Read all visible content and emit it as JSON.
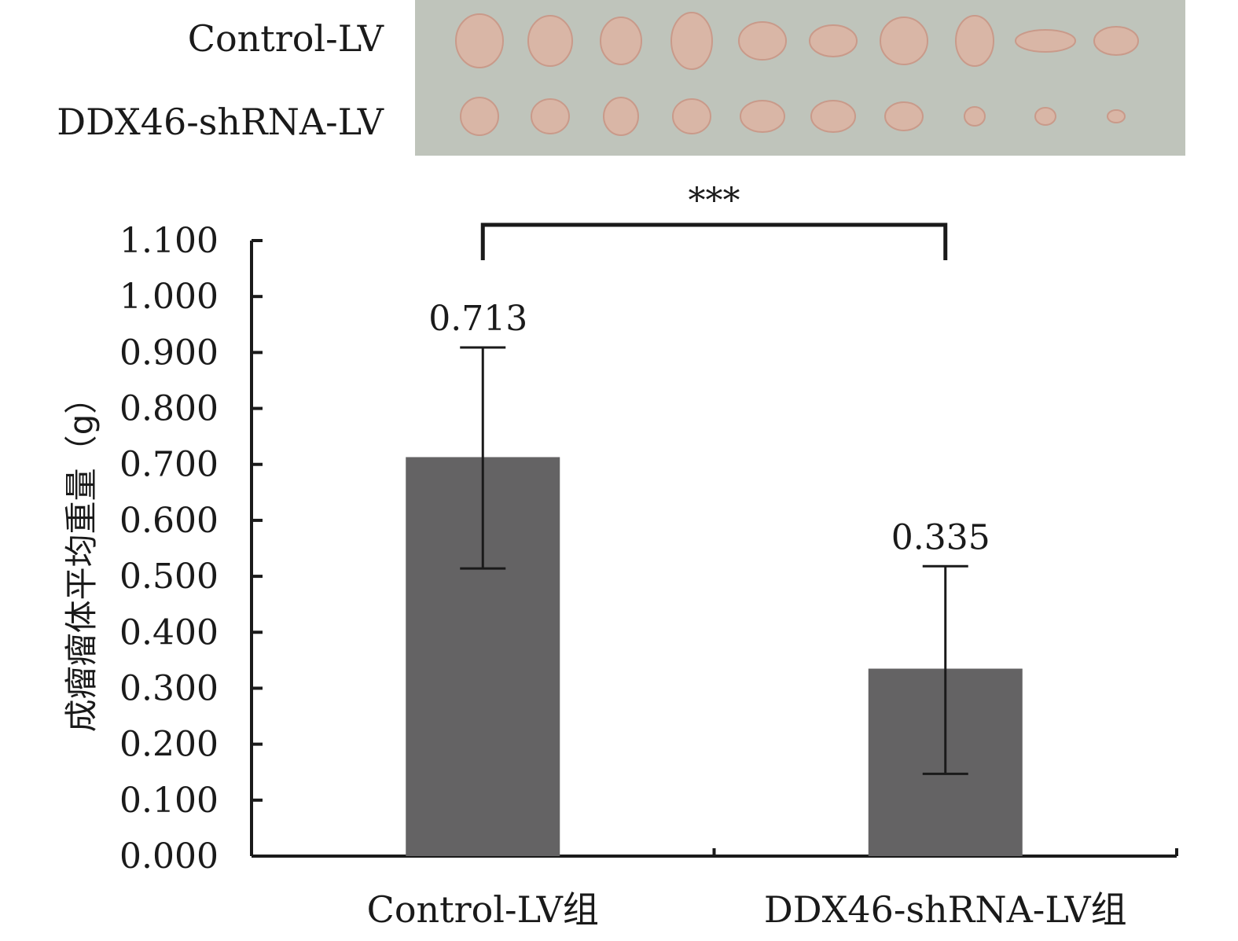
{
  "photo": {
    "rows": [
      {
        "label": "Control-LV",
        "tumor_count": 10
      },
      {
        "label": "DDX46-shRNA-LV",
        "tumor_count": 10
      }
    ],
    "background_color": "#bfc4bb",
    "tumor_color": "#d9b6a6"
  },
  "chart_data": {
    "type": "bar",
    "categories": [
      "Control-LV组",
      "DDX46-shRNA-LV组"
    ],
    "values": [
      0.713,
      0.335
    ],
    "data_labels": [
      "0.713",
      "0.335"
    ],
    "error_high": [
      0.909,
      0.518
    ],
    "error_low": [
      0.514,
      0.147
    ],
    "ylabel": "成瘤瘤体平均重量（g）",
    "ylim": [
      0,
      1.1
    ],
    "yticks": [
      0.0,
      0.1,
      0.2,
      0.3,
      0.4,
      0.5,
      0.6,
      0.7,
      0.8,
      0.9,
      1.0,
      1.1
    ],
    "ytick_labels": [
      "0.000",
      "0.100",
      "0.200",
      "0.300",
      "0.400",
      "0.500",
      "0.600",
      "0.700",
      "0.800",
      "0.900",
      "1.000",
      "1.100"
    ],
    "significance": "***",
    "grid": false,
    "bar_color": "#646364"
  }
}
